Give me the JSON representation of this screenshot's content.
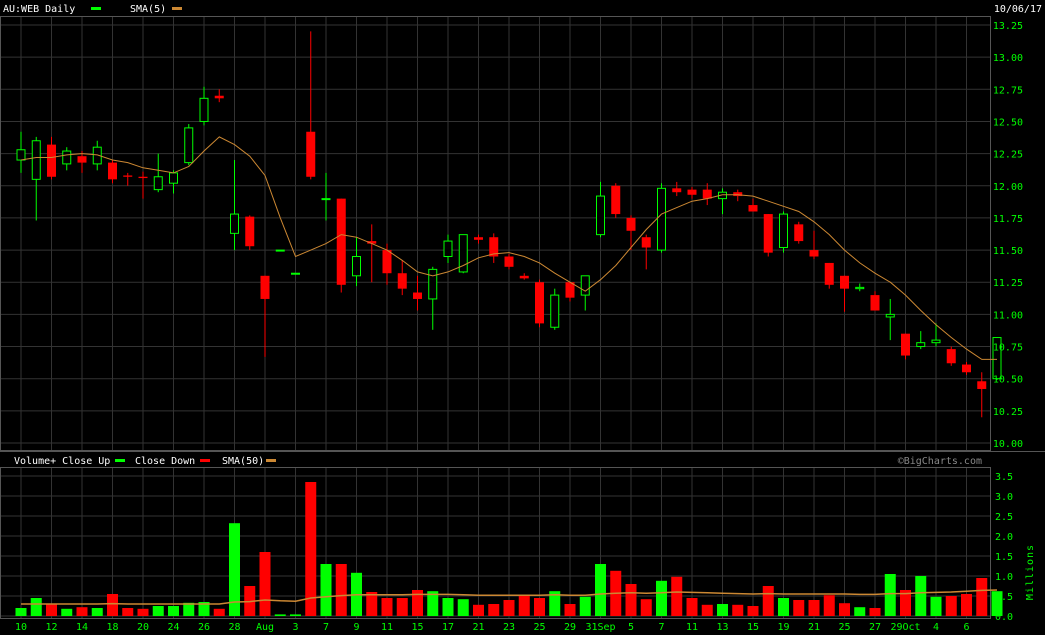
{
  "header": {
    "symbol": "AU:WEB Daily",
    "sma_label": "SMA(5)",
    "date": "10/06/17"
  },
  "volume_header": {
    "label": "Volume+ Close Up",
    "down_label": "Close Down",
    "sma_label": "SMA(50)",
    "brand": "©BigCharts.com"
  },
  "colors": {
    "up": "#00ff00",
    "down": "#ff0000",
    "sma": "#cc8833",
    "grid": "#333333",
    "text": "#ffffff",
    "axis_text": "#00ff00",
    "background": "#000000"
  },
  "chart_data": [
    {
      "type": "candlestick",
      "title": "AU:WEB Daily",
      "ylim": [
        10.0,
        13.25
      ],
      "y_ticks": [
        10.0,
        10.25,
        10.5,
        10.75,
        11.0,
        11.25,
        11.5,
        11.75,
        12.0,
        12.25,
        12.5,
        12.75,
        13.0,
        13.25
      ],
      "y_tick_labels": [
        "10.00",
        "10.25",
        "10.50",
        "10.75",
        "11.00",
        "11.25",
        "11.50",
        "11.75",
        "12.00",
        "12.25",
        "12.50",
        "12.75",
        "13.00",
        "13.25"
      ],
      "x_labels": [
        {
          "i": 0,
          "label": "10"
        },
        {
          "i": 2,
          "label": "12"
        },
        {
          "i": 4,
          "label": "14"
        },
        {
          "i": 6,
          "label": "18"
        },
        {
          "i": 8,
          "label": "20"
        },
        {
          "i": 10,
          "label": "24"
        },
        {
          "i": 12,
          "label": "26"
        },
        {
          "i": 14,
          "label": "28"
        },
        {
          "i": 16,
          "label": "Aug"
        },
        {
          "i": 18,
          "label": "3"
        },
        {
          "i": 20,
          "label": "7"
        },
        {
          "i": 22,
          "label": "9"
        },
        {
          "i": 24,
          "label": "11"
        },
        {
          "i": 26,
          "label": "15"
        },
        {
          "i": 28,
          "label": "17"
        },
        {
          "i": 30,
          "label": "21"
        },
        {
          "i": 32,
          "label": "23"
        },
        {
          "i": 34,
          "label": "25"
        },
        {
          "i": 36,
          "label": "29"
        },
        {
          "i": 38,
          "label": "31Sep"
        },
        {
          "i": 40,
          "label": "5"
        },
        {
          "i": 42,
          "label": "7"
        },
        {
          "i": 44,
          "label": "11"
        },
        {
          "i": 46,
          "label": "13"
        },
        {
          "i": 48,
          "label": "15"
        },
        {
          "i": 50,
          "label": "19"
        },
        {
          "i": 52,
          "label": "21"
        },
        {
          "i": 54,
          "label": "25"
        },
        {
          "i": 56,
          "label": "27"
        },
        {
          "i": 58,
          "label": "29Oct"
        },
        {
          "i": 60,
          "label": "4"
        },
        {
          "i": 62,
          "label": "6"
        }
      ],
      "candles": [
        {
          "o": 12.2,
          "h": 12.42,
          "l": 12.1,
          "c": 12.28
        },
        {
          "o": 12.05,
          "h": 12.38,
          "l": 11.73,
          "c": 12.35
        },
        {
          "o": 12.32,
          "h": 12.38,
          "l": 12.05,
          "c": 12.07
        },
        {
          "o": 12.17,
          "h": 12.3,
          "l": 12.12,
          "c": 12.27
        },
        {
          "o": 12.23,
          "h": 12.27,
          "l": 12.1,
          "c": 12.18
        },
        {
          "o": 12.17,
          "h": 12.35,
          "l": 12.12,
          "c": 12.3
        },
        {
          "o": 12.18,
          "h": 12.2,
          "l": 12.02,
          "c": 12.05
        },
        {
          "o": 12.08,
          "h": 12.1,
          "l": 12.0,
          "c": 12.07
        },
        {
          "o": 12.07,
          "h": 12.11,
          "l": 11.9,
          "c": 12.06
        },
        {
          "o": 11.97,
          "h": 12.25,
          "l": 11.95,
          "c": 12.07
        },
        {
          "o": 12.02,
          "h": 12.12,
          "l": 11.94,
          "c": 12.1
        },
        {
          "o": 12.18,
          "h": 12.48,
          "l": 12.16,
          "c": 12.45
        },
        {
          "o": 12.5,
          "h": 12.77,
          "l": 12.47,
          "c": 12.68
        },
        {
          "o": 12.7,
          "h": 12.75,
          "l": 12.65,
          "c": 12.68
        },
        {
          "o": 11.63,
          "h": 12.2,
          "l": 11.5,
          "c": 11.78
        },
        {
          "o": 11.76,
          "h": 11.77,
          "l": 11.5,
          "c": 11.53
        },
        {
          "o": 11.3,
          "h": 11.3,
          "l": 10.67,
          "c": 11.12
        },
        {
          "o": 11.5,
          "h": 11.5,
          "l": 11.5,
          "c": 11.5
        },
        {
          "o": 11.32,
          "h": 11.32,
          "l": 11.32,
          "c": 11.32
        },
        {
          "o": 12.42,
          "h": 13.2,
          "l": 12.05,
          "c": 12.07
        },
        {
          "o": 11.9,
          "h": 12.1,
          "l": 11.73,
          "c": 11.9
        },
        {
          "o": 11.9,
          "h": 11.9,
          "l": 11.17,
          "c": 11.23
        },
        {
          "o": 11.3,
          "h": 11.6,
          "l": 11.22,
          "c": 11.45
        },
        {
          "o": 11.57,
          "h": 11.7,
          "l": 11.25,
          "c": 11.55
        },
        {
          "o": 11.5,
          "h": 11.55,
          "l": 11.23,
          "c": 11.32
        },
        {
          "o": 11.32,
          "h": 11.42,
          "l": 11.15,
          "c": 11.2
        },
        {
          "o": 11.17,
          "h": 11.3,
          "l": 11.03,
          "c": 11.12
        },
        {
          "o": 11.12,
          "h": 11.37,
          "l": 10.88,
          "c": 11.35
        },
        {
          "o": 11.45,
          "h": 11.62,
          "l": 11.4,
          "c": 11.57
        },
        {
          "o": 11.33,
          "h": 11.62,
          "l": 11.32,
          "c": 11.62
        },
        {
          "o": 11.6,
          "h": 11.62,
          "l": 11.55,
          "c": 11.58
        },
        {
          "o": 11.6,
          "h": 11.63,
          "l": 11.4,
          "c": 11.45
        },
        {
          "o": 11.45,
          "h": 11.47,
          "l": 11.35,
          "c": 11.37
        },
        {
          "o": 11.3,
          "h": 11.32,
          "l": 11.27,
          "c": 11.28
        },
        {
          "o": 11.25,
          "h": 11.27,
          "l": 10.9,
          "c": 10.93
        },
        {
          "o": 10.9,
          "h": 11.2,
          "l": 10.88,
          "c": 11.15
        },
        {
          "o": 11.25,
          "h": 11.25,
          "l": 11.1,
          "c": 11.13
        },
        {
          "o": 11.15,
          "h": 11.3,
          "l": 11.03,
          "c": 11.3
        },
        {
          "o": 11.62,
          "h": 12.03,
          "l": 11.6,
          "c": 11.92
        },
        {
          "o": 12.0,
          "h": 12.02,
          "l": 11.75,
          "c": 11.78
        },
        {
          "o": 11.75,
          "h": 11.77,
          "l": 11.5,
          "c": 11.65
        },
        {
          "o": 11.6,
          "h": 11.62,
          "l": 11.35,
          "c": 11.52
        },
        {
          "o": 11.5,
          "h": 12.02,
          "l": 11.48,
          "c": 11.98
        },
        {
          "o": 11.98,
          "h": 12.03,
          "l": 11.92,
          "c": 11.95
        },
        {
          "o": 11.97,
          "h": 11.99,
          "l": 11.9,
          "c": 11.93
        },
        {
          "o": 11.97,
          "h": 12.02,
          "l": 11.85,
          "c": 11.9
        },
        {
          "o": 11.9,
          "h": 11.98,
          "l": 11.78,
          "c": 11.95
        },
        {
          "o": 11.95,
          "h": 11.97,
          "l": 11.88,
          "c": 11.92
        },
        {
          "o": 11.85,
          "h": 11.9,
          "l": 11.8,
          "c": 11.8
        },
        {
          "o": 11.78,
          "h": 11.78,
          "l": 11.45,
          "c": 11.48
        },
        {
          "o": 11.52,
          "h": 11.8,
          "l": 11.48,
          "c": 11.78
        },
        {
          "o": 11.7,
          "h": 11.72,
          "l": 11.55,
          "c": 11.57
        },
        {
          "o": 11.5,
          "h": 11.65,
          "l": 11.43,
          "c": 11.45
        },
        {
          "o": 11.4,
          "h": 11.4,
          "l": 11.2,
          "c": 11.23
        },
        {
          "o": 11.3,
          "h": 11.3,
          "l": 11.02,
          "c": 11.2
        },
        {
          "o": 11.2,
          "h": 11.24,
          "l": 11.18,
          "c": 11.21
        },
        {
          "o": 11.15,
          "h": 11.18,
          "l": 11.03,
          "c": 11.03
        },
        {
          "o": 10.98,
          "h": 11.12,
          "l": 10.8,
          "c": 11.0
        },
        {
          "o": 10.85,
          "h": 10.85,
          "l": 10.65,
          "c": 10.68
        },
        {
          "o": 10.75,
          "h": 10.87,
          "l": 10.73,
          "c": 10.78
        },
        {
          "o": 10.78,
          "h": 10.93,
          "l": 10.75,
          "c": 10.8
        },
        {
          "o": 10.73,
          "h": 10.75,
          "l": 10.6,
          "c": 10.62
        },
        {
          "o": 10.61,
          "h": 10.63,
          "l": 10.53,
          "c": 10.55
        },
        {
          "o": 10.48,
          "h": 10.55,
          "l": 10.2,
          "c": 10.42
        },
        {
          "o": 10.5,
          "h": 10.82,
          "l": 10.49,
          "c": 10.82
        }
      ],
      "sma": [
        12.2,
        12.22,
        12.22,
        12.24,
        12.25,
        12.24,
        12.2,
        12.18,
        12.14,
        12.12,
        12.1,
        12.15,
        12.27,
        12.38,
        12.32,
        12.23,
        12.08,
        11.75,
        11.45,
        11.5,
        11.55,
        11.62,
        11.6,
        11.55,
        11.5,
        11.42,
        11.33,
        11.3,
        11.33,
        11.38,
        11.44,
        11.47,
        11.48,
        11.45,
        11.4,
        11.32,
        11.25,
        11.18,
        11.27,
        11.38,
        11.52,
        11.66,
        11.78,
        11.83,
        11.88,
        11.9,
        11.93,
        11.93,
        11.92,
        11.88,
        11.84,
        11.8,
        11.72,
        11.62,
        11.5,
        11.4,
        11.32,
        11.25,
        11.15,
        11.03,
        10.92,
        10.82,
        10.73,
        10.65,
        10.65
      ]
    },
    {
      "type": "bar",
      "title": "Volume+ Close Up",
      "ylabel": "Millions",
      "ylim": [
        0.0,
        3.5
      ],
      "y_ticks": [
        0.0,
        0.5,
        1.0,
        1.5,
        2.0,
        2.5,
        3.0,
        3.5
      ],
      "y_tick_labels": [
        "0.0",
        "0.5",
        "1.0",
        "1.5",
        "2.0",
        "2.5",
        "3.0",
        "3.5"
      ],
      "values": [
        0.2,
        0.45,
        0.3,
        0.18,
        0.22,
        0.2,
        0.55,
        0.2,
        0.18,
        0.25,
        0.25,
        0.33,
        0.35,
        0.18,
        2.32,
        0.75,
        1.6,
        0.04,
        0.04,
        3.35,
        1.3,
        1.3,
        1.08,
        0.6,
        0.45,
        0.45,
        0.65,
        0.62,
        0.45,
        0.42,
        0.28,
        0.3,
        0.4,
        0.5,
        0.45,
        0.62,
        0.3,
        0.48,
        1.3,
        1.13,
        0.8,
        0.42,
        0.88,
        0.98,
        0.45,
        0.28,
        0.3,
        0.28,
        0.25,
        0.75,
        0.45,
        0.4,
        0.4,
        0.52,
        0.32,
        0.22,
        0.2,
        1.05,
        0.65,
        1.0,
        0.48,
        0.5,
        0.55,
        0.95,
        0.62
      ],
      "sma": [
        0.3,
        0.3,
        0.3,
        0.3,
        0.3,
        0.3,
        0.31,
        0.3,
        0.3,
        0.3,
        0.3,
        0.3,
        0.3,
        0.3,
        0.35,
        0.36,
        0.4,
        0.38,
        0.37,
        0.45,
        0.48,
        0.51,
        0.53,
        0.53,
        0.53,
        0.53,
        0.54,
        0.54,
        0.54,
        0.53,
        0.52,
        0.52,
        0.52,
        0.52,
        0.52,
        0.53,
        0.52,
        0.52,
        0.55,
        0.57,
        0.58,
        0.57,
        0.58,
        0.6,
        0.59,
        0.58,
        0.57,
        0.56,
        0.55,
        0.56,
        0.55,
        0.55,
        0.55,
        0.55,
        0.55,
        0.54,
        0.54,
        0.56,
        0.56,
        0.58,
        0.59,
        0.6,
        0.62,
        0.64,
        0.65
      ]
    }
  ]
}
